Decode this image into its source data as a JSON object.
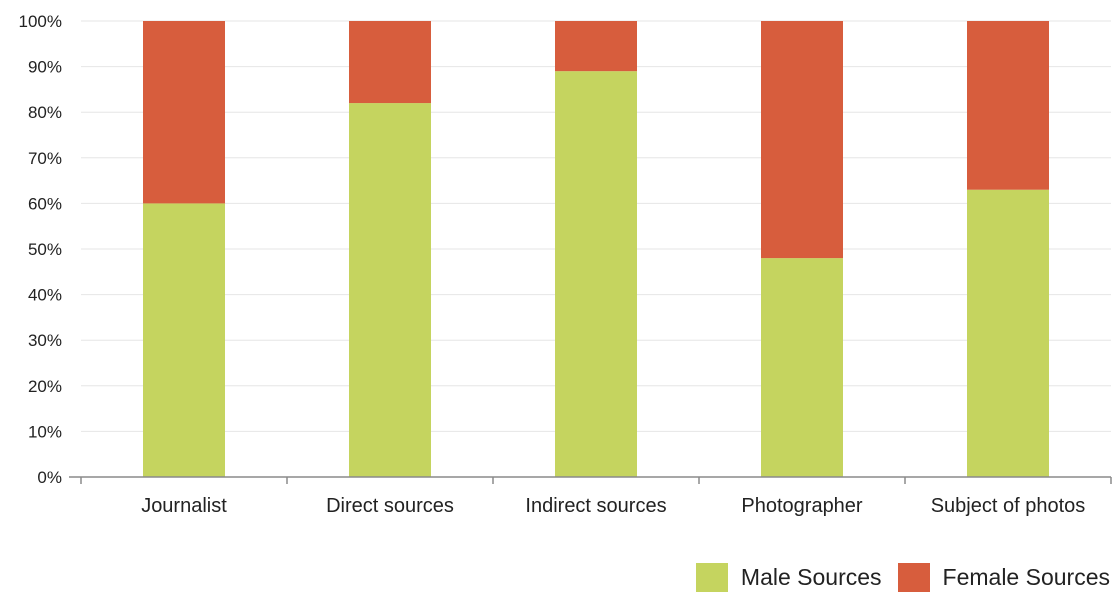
{
  "chart_data": {
    "type": "bar",
    "stacked": true,
    "percent_stacked": true,
    "categories": [
      "Journalist",
      "Direct sources",
      "Indirect sources",
      "Photographer",
      "Subject of photos"
    ],
    "series": [
      {
        "name": "Male Sources",
        "values": [
          60,
          82,
          89,
          48,
          63
        ],
        "color": "#c5d45f"
      },
      {
        "name": "Female Sources",
        "values": [
          40,
          18,
          11,
          52,
          37
        ],
        "color": "#d75d3d"
      }
    ],
    "y_ticks": [
      "0%",
      "10%",
      "20%",
      "30%",
      "40%",
      "50%",
      "60%",
      "70%",
      "80%",
      "90%",
      "100%"
    ],
    "ylim": [
      0,
      100
    ],
    "grid": true,
    "legend_position": "bottom-right"
  }
}
